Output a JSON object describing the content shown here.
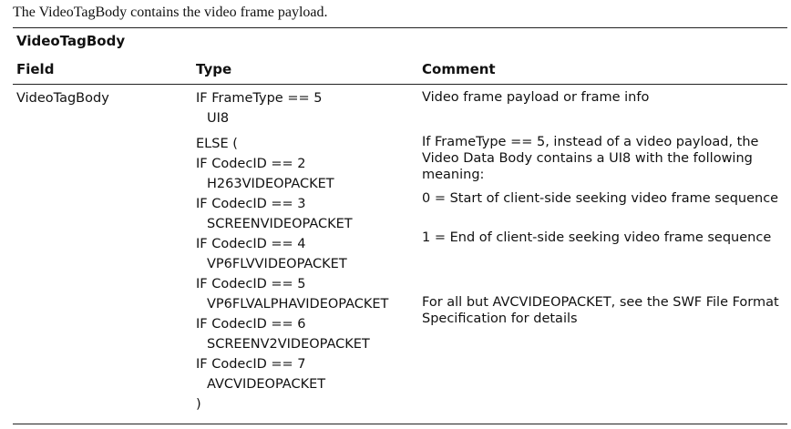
{
  "intro_text": "The VideoTagBody contains the video frame payload.",
  "table": {
    "title": "VideoTagBody",
    "headers": {
      "field": "Field",
      "type": "Type",
      "comment": "Comment"
    },
    "row": {
      "field": "VideoTagBody",
      "type_lines": [
        "IF FrameType == 5",
        "UI8",
        "ELSE (",
        "IF CodecID == 2",
        "H263VIDEOPACKET",
        "IF CodecID == 3",
        "SCREENVIDEOPACKET",
        "IF CodecID == 4",
        "VP6FLVVIDEOPACKET",
        "IF CodecID == 5",
        "VP6FLVALPHAVIDEOPACKET",
        "IF CodecID == 6",
        "SCREENV2VIDEOPACKET",
        "IF CodecID == 7",
        "AVCVIDEOPACKET",
        ")"
      ],
      "comments": [
        "Video frame payload or frame info",
        "If FrameType == 5, instead of a video payload, the Video Data Body contains a UI8 with the following meaning:",
        "0 = Start of client-side seeking video frame sequence",
        "1 = End of client-side seeking video frame sequence",
        "For all but AVCVIDEOPACKET, see the SWF File Format Specification for details"
      ]
    }
  }
}
